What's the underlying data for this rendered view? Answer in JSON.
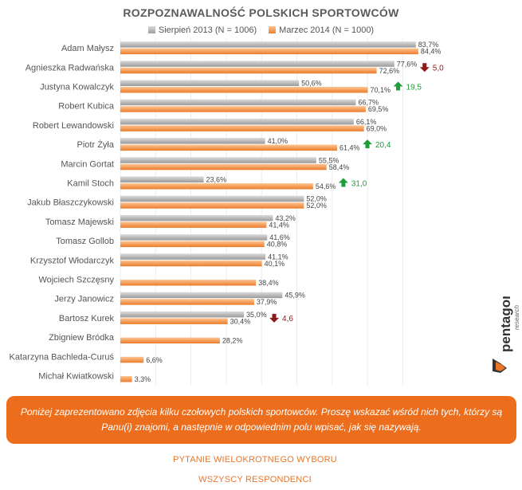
{
  "title": "ROZPOZNAWALNOŚĆ POLSKICH SPORTOWCÓW",
  "legend": {
    "series1": "Sierpień 2013 (N = 1006)",
    "series2": "Marzec 2014 (N = 1000)"
  },
  "colors": {
    "series1": "#a8a8a8",
    "series2": "#ee8a3c",
    "up": "#1e9e3a",
    "down": "#8b1a1a"
  },
  "chart_data": {
    "type": "bar",
    "orientation": "horizontal",
    "xlim": [
      0,
      100
    ],
    "grid": true,
    "categories": [
      "Adam Małysz",
      "Agnieszka Radwańska",
      "Justyna Kowalczyk",
      "Robert Kubica",
      "Robert Lewandowski",
      "Piotr Żyła",
      "Marcin Gortat",
      "Kamil Stoch",
      "Jakub Błaszczykowski",
      "Tomasz Majewski",
      "Tomasz Gollob",
      "Krzysztof Włodarczyk",
      "Wojciech Szczęsny",
      "Jerzy Janowicz",
      "Bartosz Kurek",
      "Zbigniew Bródka",
      "Katarzyna Bachleda-Curuś",
      "Michał Kwiatkowski"
    ],
    "series": [
      {
        "name": "Sierpień 2013 (N = 1006)",
        "values": [
          83.7,
          77.6,
          50.6,
          66.7,
          66.1,
          41.0,
          55.5,
          23.6,
          52.0,
          43.2,
          41.6,
          41.1,
          null,
          45.9,
          35.0,
          null,
          null,
          null
        ],
        "labels": [
          "83,7%",
          "77,6%",
          "50,6%",
          "66,7%",
          "66,1%",
          "41,0%",
          "55,5%",
          "23,6%",
          "52,0%",
          "43,2%",
          "41,6%",
          "41,1%",
          "",
          "45,9%",
          "35,0%",
          "",
          "",
          ""
        ]
      },
      {
        "name": "Marzec 2014 (N = 1000)",
        "values": [
          84.4,
          72.6,
          70.1,
          69.5,
          69.0,
          61.4,
          58.4,
          54.6,
          52.0,
          41.4,
          40.8,
          40.1,
          38.4,
          37.9,
          30.4,
          28.2,
          6.6,
          3.3
        ],
        "labels": [
          "84,4%",
          "72,6%",
          "70,1%",
          "69,5%",
          "69,0%",
          "61,4%",
          "58,4%",
          "54,6%",
          "52,0%",
          "41,4%",
          "40,8%",
          "40,1%",
          "38,4%",
          "37,9%",
          "30,4%",
          "28,2%",
          "6,6%",
          "3,3%"
        ]
      }
    ],
    "changes": [
      {
        "category": "Agnieszka Radwańska",
        "direction": "down",
        "label": "5,0"
      },
      {
        "category": "Justyna Kowalczyk",
        "direction": "up",
        "label": "19,5"
      },
      {
        "category": "Piotr Żyła",
        "direction": "up",
        "label": "20,4"
      },
      {
        "category": "Kamil Stoch",
        "direction": "up",
        "label": "31,0"
      },
      {
        "category": "Bartosz Kurek",
        "direction": "down",
        "label": "4,6"
      }
    ]
  },
  "question": "Poniżej zaprezentowano zdjęcia kilku czołowych polskich sportowców. Proszę wskazać wśród nich tych, którzy są Panu(i) znajomi, a następnie w odpowiednim polu wpisać, jak się nazywają.",
  "footer": {
    "line1": "PYTANIE WIELOKROTNEGO WYBORU",
    "line2": "WSZYSCY RESPONDENCI"
  },
  "logo": {
    "text": "pentagon",
    "subtext": "research"
  }
}
